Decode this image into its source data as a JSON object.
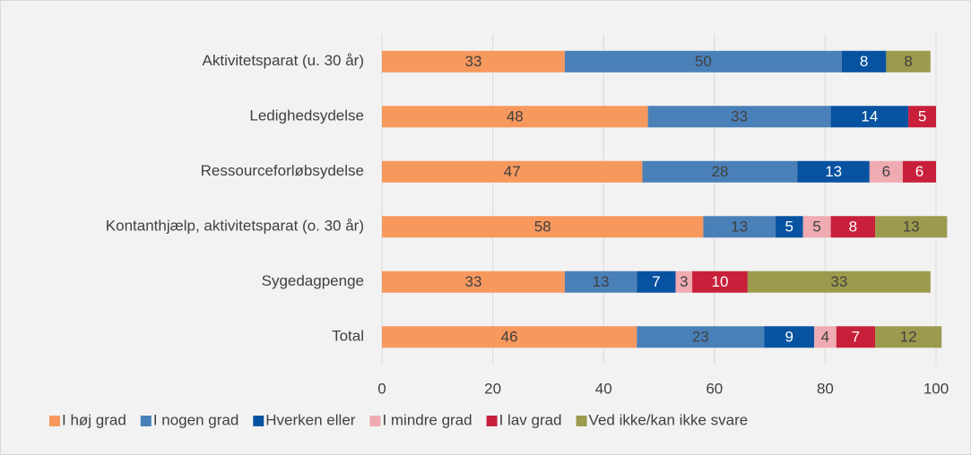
{
  "chart_data": {
    "type": "stacked_barh",
    "categories": [
      "Aktivitetsparat (u. 30 år)",
      "Ledighedsydelse",
      "Ressourceforløbsydelse",
      "Kontanthjælp, aktivitetsparat (o. 30 år)",
      "Sygedagpenge",
      "Total"
    ],
    "series": [
      {
        "name": "I høj grad",
        "color": "#F7985D",
        "values": [
          33,
          48,
          47,
          58,
          33,
          46
        ]
      },
      {
        "name": "I nogen grad",
        "color": "#4A80B8",
        "values": [
          50,
          33,
          28,
          13,
          13,
          23
        ]
      },
      {
        "name": "Hverken eller",
        "color": "#0752A1",
        "values": [
          8,
          14,
          13,
          5,
          7,
          9
        ]
      },
      {
        "name": "I mindre grad",
        "color": "#EFAAB2",
        "values": [
          null,
          null,
          6,
          5,
          3,
          4
        ]
      },
      {
        "name": "I lav grad",
        "color": "#C8203B",
        "values": [
          null,
          5,
          6,
          8,
          10,
          7
        ]
      },
      {
        "name": "Ved ikke/kan ikke svare",
        "color": "#9C9A4D",
        "values": [
          8,
          null,
          null,
          13,
          33,
          12
        ]
      }
    ],
    "xlim": [
      0,
      100
    ],
    "xticks": [
      0,
      20,
      40,
      60,
      80,
      100
    ],
    "grid": true,
    "legend": "bottom"
  }
}
